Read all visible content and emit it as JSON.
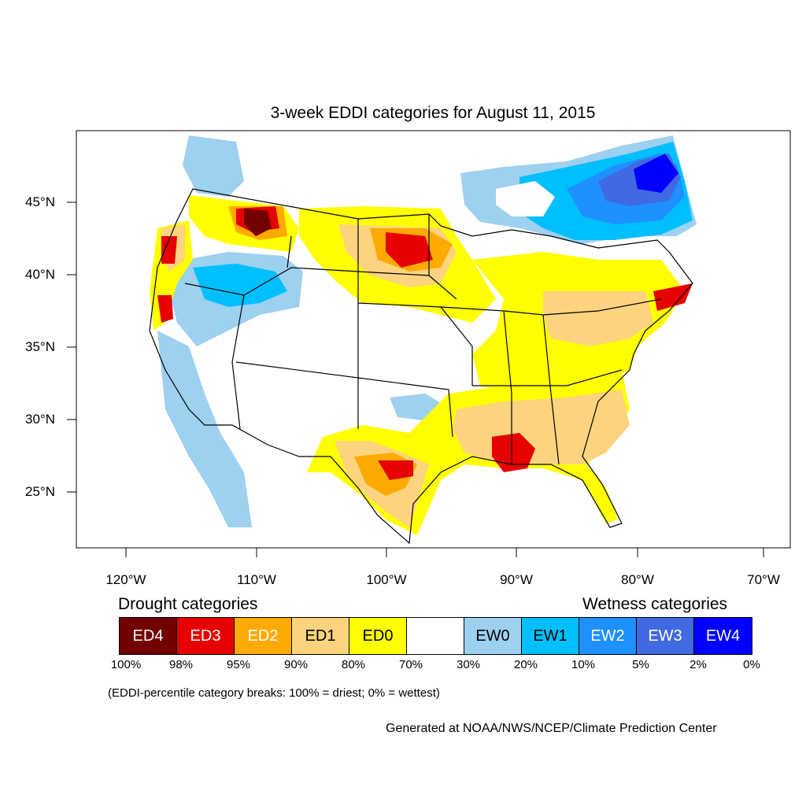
{
  "title": "3-week EDDI categories for August 11, 2015",
  "latitude_labels": [
    "45°N",
    "40°N",
    "35°N",
    "30°N",
    "25°N"
  ],
  "longitude_labels": [
    "120°W",
    "110°W",
    "100°W",
    "90°W",
    "80°W",
    "70°W"
  ],
  "legend": {
    "drought_heading": "Drought categories",
    "wetness_heading": "Wetness categories",
    "categories": [
      {
        "label": "ED4",
        "color": "#730000"
      },
      {
        "label": "ED3",
        "color": "#e60000"
      },
      {
        "label": "ED2",
        "color": "#ffaa00"
      },
      {
        "label": "ED1",
        "color": "#fcd37f"
      },
      {
        "label": "ED0",
        "color": "#ffff00"
      },
      {
        "label": "",
        "color": "#ffffff"
      },
      {
        "label": "EW0",
        "color": "#9ed0f0"
      },
      {
        "label": "EW1",
        "color": "#00bfff"
      },
      {
        "label": "EW2",
        "color": "#1e90ff"
      },
      {
        "label": "EW3",
        "color": "#4169e1"
      },
      {
        "label": "EW4",
        "color": "#0000ff"
      }
    ],
    "percent_breaks": [
      "100%",
      "98%",
      "95%",
      "90%",
      "80%",
      "70%",
      "30%",
      "20%",
      "10%",
      "5%",
      "2%",
      "0%"
    ],
    "note": "(EDDI-percentile category breaks: 100% = driest; 0% = wettest)"
  },
  "credit": "Generated at NOAA/NWS/NCEP/Climate Prediction Center"
}
